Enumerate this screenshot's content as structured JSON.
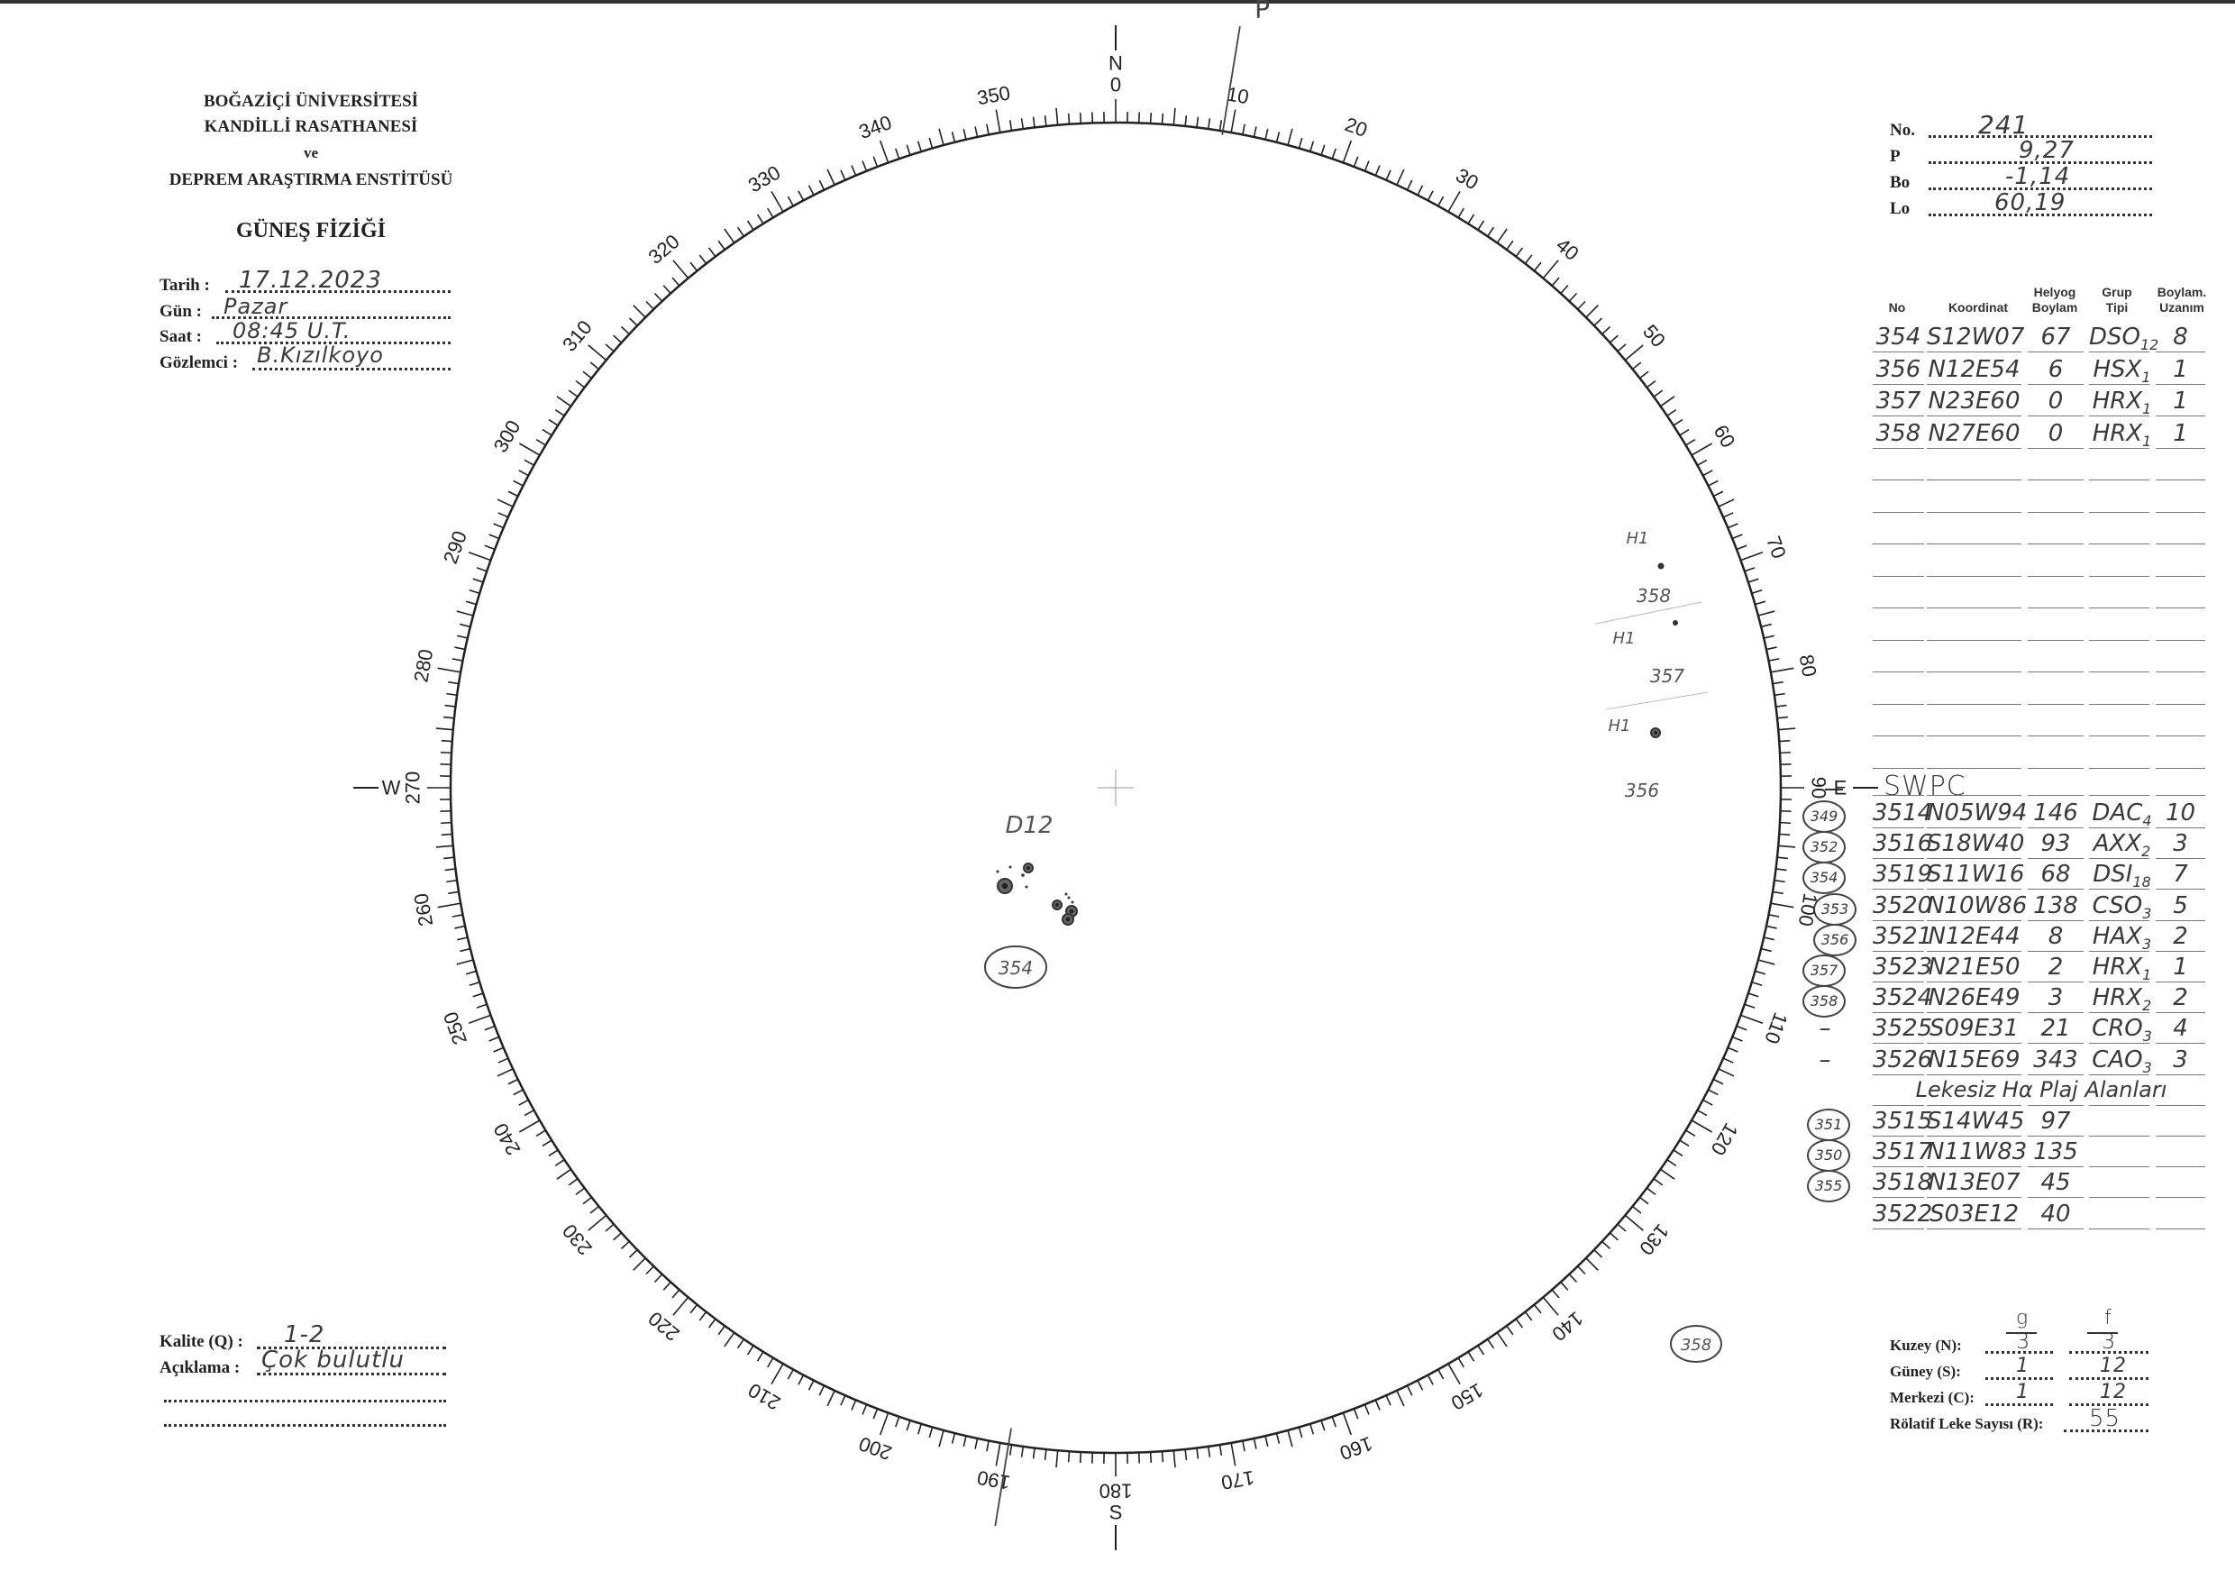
{
  "institution": {
    "line1": "BOĞAZİÇİ ÜNİVERSİTESİ",
    "line2": "KANDİLLİ RASATHANESİ",
    "line3": "ve",
    "line4": "DEPREM ARAŞTIRMA ENSTİTÜSÜ",
    "department": "GÜNEŞ FİZİĞİ"
  },
  "observation": {
    "date_label": "Tarih :",
    "date": "17.12.2023",
    "day_label": "Gün :",
    "day": "Pazar",
    "time_label": "Saat :",
    "time": "08:45 U.T.",
    "observer_label": "Gözlemci :",
    "observer": "B.Kızılkoyo"
  },
  "ephemeris": {
    "no_label": "No.",
    "no": "241",
    "p_label": "P",
    "p": "9,27",
    "bo_label": "Bo",
    "bo": "-1,14",
    "lo_label": "Lo",
    "lo": "60,19"
  },
  "table_headers": {
    "no": "No",
    "koordinat": "Koordinat",
    "helyog": "Helyog\nBoylam",
    "grup": "Grup\nTipi",
    "boylam": "Boylam.\nUzanım"
  },
  "groups": [
    {
      "no": "354",
      "coord": "S12W07",
      "helio": "67",
      "type": "DSO",
      "sub": "12",
      "extent": "8"
    },
    {
      "no": "356",
      "coord": "N12E54",
      "helio": "6",
      "type": "HSX",
      "sub": "1",
      "extent": "1"
    },
    {
      "no": "357",
      "coord": "N23E60",
      "helio": "0",
      "type": "HRX",
      "sub": "1",
      "extent": "1"
    },
    {
      "no": "358",
      "coord": "N27E60",
      "helio": "0",
      "type": "HRX",
      "sub": "1",
      "extent": "1"
    }
  ],
  "empty_rows": 10,
  "swpc": {
    "title": "SWPC",
    "rows": [
      {
        "local": "349",
        "no": "3514",
        "coord": "N05W94",
        "helio": "146",
        "type": "DAC",
        "sub": "4",
        "extent": "10"
      },
      {
        "local": "352",
        "no": "3516",
        "coord": "S18W40",
        "helio": "93",
        "type": "AXX",
        "sub": "2",
        "extent": "3"
      },
      {
        "local": "354",
        "no": "3519",
        "coord": "S11W16",
        "helio": "68",
        "type": "DSI",
        "sub": "18",
        "extent": "7"
      },
      {
        "local": "353",
        "no": "3520",
        "coord": "N10W86",
        "helio": "138",
        "type": "CSO",
        "sub": "3",
        "extent": "5"
      },
      {
        "local": "356",
        "no": "3521",
        "coord": "N12E44",
        "helio": "8",
        "type": "HAX",
        "sub": "3",
        "extent": "2"
      },
      {
        "local": "357",
        "no": "3523",
        "coord": "N21E50",
        "helio": "2",
        "type": "HRX",
        "sub": "1",
        "extent": "1"
      },
      {
        "local": "358",
        "no": "3524",
        "coord": "N26E49",
        "helio": "3",
        "type": "HRX",
        "sub": "2",
        "extent": "2"
      },
      {
        "local": "–",
        "no": "3525",
        "coord": "S09E31",
        "helio": "21",
        "type": "CRO",
        "sub": "3",
        "extent": "4"
      },
      {
        "local": "–",
        "no": "3526",
        "coord": "N15E69",
        "helio": "343",
        "type": "CAO",
        "sub": "3",
        "extent": "3"
      }
    ],
    "plage_title": "Lekesiz Hα Plaj Alanları",
    "plage_rows": [
      {
        "local": "351",
        "no": "3515",
        "coord": "S14W45",
        "helio": "97"
      },
      {
        "local": "350",
        "no": "3517",
        "coord": "N11W83",
        "helio": "135"
      },
      {
        "local": "355",
        "no": "3518",
        "coord": "N13E07",
        "helio": "45"
      },
      {
        "local": "",
        "no": "3522",
        "coord": "S03E12",
        "helio": "40"
      }
    ]
  },
  "quality": {
    "label": "Kalite (Q) :",
    "value": "1-2",
    "remark_label": "Açıklama :",
    "remark": "Çok bulutlu"
  },
  "counts": {
    "g_header": "g",
    "f_header": "f",
    "north_label": "Kuzey (N):",
    "north_g": "3",
    "north_f": "3",
    "south_label": "Güney (S):",
    "south_g": "1",
    "south_f": "12",
    "central_label": "Merkezi (C):",
    "central_g": "1",
    "central_f": "12",
    "r_label": "Rölatif Leke Sayısı (R):",
    "r_value": "55"
  },
  "disk": {
    "compass": {
      "n": "N",
      "e": "E",
      "s": "S",
      "w": "W"
    },
    "p_label": "P",
    "p_angle_deg": 9.27,
    "degree_labels": [
      "0",
      "10",
      "20",
      "30",
      "40",
      "50",
      "60",
      "70",
      "80",
      "90",
      "100",
      "110",
      "120",
      "130",
      "140",
      "150",
      "160",
      "170",
      "180",
      "190",
      "200",
      "210",
      "220",
      "230",
      "240",
      "250",
      "260",
      "270",
      "280",
      "290",
      "300",
      "310",
      "320",
      "330",
      "340",
      "350"
    ],
    "annotations": {
      "group_354_class": "D12",
      "group_354_number": "354",
      "h1_a": "H1",
      "num_358": "358",
      "h1_b": "H1",
      "num_357": "357",
      "h1_c": "H1",
      "num_356": "356",
      "outside_358": "358"
    }
  }
}
